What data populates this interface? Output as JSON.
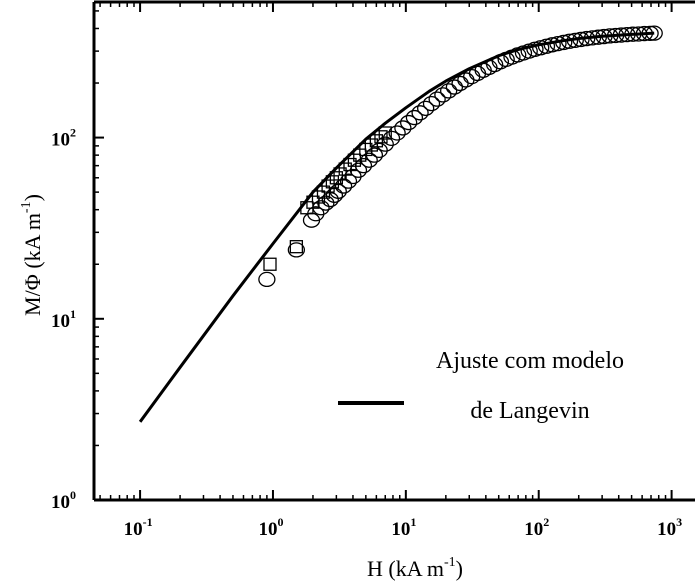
{
  "chart_data": {
    "type": "scatter",
    "title": "",
    "xlabel": "H (kA m-1)",
    "ylabel": "M/Φ (kA m-1)",
    "xlabel_parts": {
      "base": "H (kA m",
      "exp": "-1",
      "close": ")"
    },
    "ylabel_parts": {
      "base": "M/Φ (kA m",
      "exp": "-1",
      "close": ")"
    },
    "x_scale": "log",
    "y_scale": "log",
    "xlim": [
      0.045,
      1500
    ],
    "ylim": [
      1,
      560
    ],
    "x_ticks": [
      {
        "value": 0.1,
        "base": "10",
        "exp": "-1"
      },
      {
        "value": 1,
        "base": "10",
        "exp": "0"
      },
      {
        "value": 10,
        "base": "10",
        "exp": "1"
      },
      {
        "value": 100,
        "base": "10",
        "exp": "2"
      },
      {
        "value": 1000,
        "base": "10",
        "exp": "3"
      }
    ],
    "y_ticks": [
      {
        "value": 1,
        "base": "10",
        "exp": "0"
      },
      {
        "value": 10,
        "base": "10",
        "exp": "1"
      },
      {
        "value": 100,
        "base": "10",
        "exp": "2"
      }
    ],
    "grid": false,
    "legend": {
      "position": "center-right",
      "entries": [
        {
          "line1": "Ajuste com modelo",
          "line2": "de Langevin",
          "style": "solid-line"
        }
      ]
    },
    "series": [
      {
        "marker": "square",
        "x": [
          0.95,
          1.5,
          1.8,
          2.0,
          2.2,
          2.4,
          2.6,
          2.8,
          3.0,
          3.2,
          3.5,
          3.8,
          4.1,
          4.5,
          5.0,
          5.5,
          6.0,
          6.5,
          7.0
        ],
        "y": [
          20,
          25,
          41,
          44,
          47,
          50,
          54,
          57,
          60,
          63,
          67,
          71,
          75,
          80,
          86,
          91,
          96,
          101,
          106
        ]
      },
      {
        "marker": "circle",
        "x": [
          0.9,
          1.5,
          1.95,
          2.1,
          2.3,
          2.5,
          2.7,
          2.9,
          3.1,
          3.4,
          3.7,
          4.0,
          4.4,
          4.8,
          5.3,
          5.8,
          6.3,
          7.0,
          7.8,
          8.6,
          9.5,
          10.5,
          11.6,
          12.8,
          14.1,
          15.6,
          17.2,
          19.0,
          21.0,
          23.2,
          25.6,
          28.3,
          31.3,
          34.6,
          38.2,
          42.2,
          46.6,
          51.5,
          56.9,
          62.9,
          69.5,
          76.8,
          84.8,
          93.7,
          103.5,
          114.4,
          126.4,
          139.6,
          154.3,
          170.5,
          188.4,
          208.1,
          230,
          254,
          281,
          310,
          343,
          379,
          418,
          462,
          511,
          565,
          624,
          689,
          740
        ],
        "y": [
          16.5,
          24,
          35,
          38,
          41,
          43.5,
          45.5,
          48,
          50.5,
          54,
          57.5,
          61,
          66,
          70,
          75,
          80,
          85,
          92,
          99,
          106,
          113,
          121,
          129,
          137,
          145,
          154,
          163,
          172,
          181,
          190,
          199,
          208,
          217,
          226,
          235,
          244,
          253,
          262,
          270,
          278,
          286,
          293,
          300,
          307,
          313,
          319,
          325,
          330,
          335,
          340,
          344,
          348,
          352,
          355,
          358,
          361,
          364,
          366,
          368,
          370,
          372,
          373,
          375,
          376,
          377
        ]
      }
    ],
    "fit": {
      "style": "solid-line",
      "x": [
        0.1,
        0.2,
        0.5,
        1,
        2,
        3,
        5,
        7,
        10,
        15,
        20,
        30,
        50,
        70,
        100,
        150,
        200,
        300,
        500,
        740
      ],
      "y": [
        2.7,
        5.4,
        13.4,
        26,
        50,
        68,
        98,
        120,
        146,
        180,
        205,
        240,
        283,
        306,
        325,
        342,
        352,
        362,
        371,
        377
      ]
    }
  }
}
